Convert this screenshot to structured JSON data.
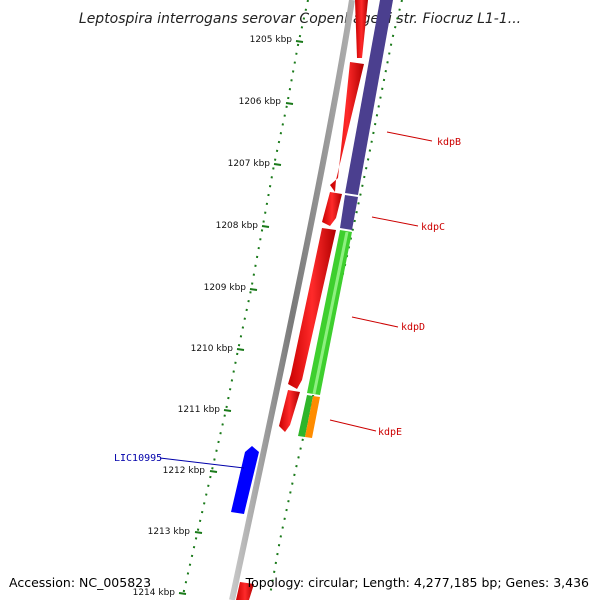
{
  "title": "Leptospira interrogans serovar Copenhageni str. Fiocruz L1-1...",
  "ticks": [
    "1205 kbp",
    "1206 kbp",
    "1207 kbp",
    "1208 kbp",
    "1209 kbp",
    "1210 kbp",
    "1211 kbp",
    "1212 kbp",
    "1213 kbp",
    "1214 kbp"
  ],
  "genes": [
    {
      "name": "kdpB",
      "color": "#cc0000"
    },
    {
      "name": "kdpC",
      "color": "#cc0000"
    },
    {
      "name": "kdpD",
      "color": "#cc0000"
    },
    {
      "name": "kdpE",
      "color": "#cc0000"
    },
    {
      "name": "LIC10995",
      "color": "#0000aa"
    }
  ],
  "colors": {
    "forward_cds": "#ff0000",
    "reverse_cds": "#0000ff",
    "track_purple": "#4b3f8f",
    "track_green": "#3ecf2e",
    "track_orange": "#ff8c00",
    "backbone": "#888888",
    "tick_marks": "#1a7a1a"
  },
  "footer": {
    "accession": "Accession: NC_005823",
    "topology": "Topology: circular; Length: 4,277,185 bp; Genes: 3,436"
  }
}
